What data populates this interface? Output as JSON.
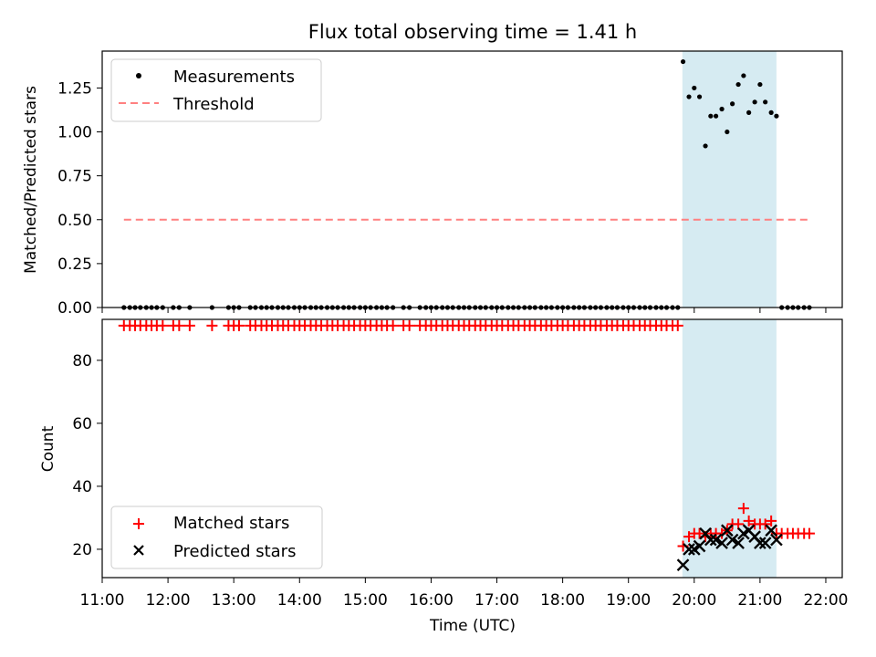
{
  "chart_data": [
    {
      "type": "scatter",
      "title": "Flux total observing time = 1.41 h",
      "xlabel": "",
      "ylabel": "Matched/Predicted stars",
      "xlim": [
        11.0,
        22.25
      ],
      "ylim": [
        0,
        1.46
      ],
      "yticks": [
        0,
        0.25,
        0.5,
        0.75,
        1.0,
        1.25
      ],
      "ytick_labels": [
        "0.00",
        "0.25",
        "0.50",
        "0.75",
        "1.00",
        "1.25"
      ],
      "highlight_span": [
        19.82,
        21.25
      ],
      "legend": [
        "Measurements",
        "Threshold"
      ],
      "threshold": {
        "name": "Threshold",
        "value": 0.5,
        "x_range": [
          11.33,
          21.75
        ],
        "color": "#ff8080"
      },
      "series": [
        {
          "name": "Measurements",
          "color": "#000000",
          "x": [
            11.33,
            11.42,
            11.5,
            11.58,
            11.67,
            11.75,
            11.83,
            11.92,
            12.08,
            12.17,
            12.33,
            12.67,
            12.92,
            13.0,
            13.08,
            13.25,
            13.33,
            13.42,
            13.5,
            13.58,
            13.67,
            13.75,
            13.83,
            13.92,
            14.0,
            14.08,
            14.17,
            14.25,
            14.33,
            14.42,
            14.5,
            14.58,
            14.67,
            14.75,
            14.83,
            14.92,
            15.0,
            15.08,
            15.17,
            15.25,
            15.33,
            15.42,
            15.58,
            15.67,
            15.83,
            15.92,
            16.0,
            16.08,
            16.17,
            16.25,
            16.33,
            16.42,
            16.5,
            16.58,
            16.67,
            16.75,
            16.83,
            16.92,
            17.0,
            17.08,
            17.17,
            17.25,
            17.33,
            17.42,
            17.5,
            17.58,
            17.67,
            17.75,
            17.83,
            17.92,
            18.0,
            18.08,
            18.17,
            18.25,
            18.33,
            18.42,
            18.5,
            18.58,
            18.67,
            18.75,
            18.83,
            18.92,
            19.0,
            19.08,
            19.17,
            19.25,
            19.33,
            19.42,
            19.5,
            19.58,
            19.67,
            19.75,
            19.83,
            19.92,
            20.0,
            20.08,
            20.17,
            20.25,
            20.33,
            20.42,
            20.5,
            20.58,
            20.67,
            20.75,
            20.83,
            20.92,
            21.0,
            21.08,
            21.17,
            21.25,
            21.33,
            21.42,
            21.5,
            21.58,
            21.67,
            21.75
          ],
          "y": [
            0,
            0,
            0,
            0,
            0,
            0,
            0,
            0,
            0,
            0,
            0,
            0,
            0,
            0,
            0,
            0,
            0,
            0,
            0,
            0,
            0,
            0,
            0,
            0,
            0,
            0,
            0,
            0,
            0,
            0,
            0,
            0,
            0,
            0,
            0,
            0,
            0,
            0,
            0,
            0,
            0,
            0,
            0,
            0,
            0,
            0,
            0,
            0,
            0,
            0,
            0,
            0,
            0,
            0,
            0,
            0,
            0,
            0,
            0,
            0,
            0,
            0,
            0,
            0,
            0,
            0,
            0,
            0,
            0,
            0,
            0,
            0,
            0,
            0,
            0,
            0,
            0,
            0,
            0,
            0,
            0,
            0,
            0,
            0,
            0,
            0,
            0,
            0,
            0,
            0,
            0,
            0,
            1.4,
            1.2,
            1.25,
            1.2,
            0.92,
            1.09,
            1.09,
            1.13,
            1.0,
            1.16,
            1.27,
            1.32,
            1.11,
            1.17,
            1.27,
            1.17,
            1.11,
            1.09,
            0,
            0,
            0,
            0,
            0,
            0
          ]
        }
      ]
    },
    {
      "type": "scatter",
      "title": "",
      "xlabel": "Time (UTC)",
      "ylabel": "Count",
      "xlim": [
        11.0,
        22.25
      ],
      "ylim": [
        11,
        93
      ],
      "yticks": [
        20,
        40,
        60,
        80
      ],
      "ytick_labels": [
        "20",
        "40",
        "60",
        "80"
      ],
      "xticks": [
        11,
        12,
        13,
        14,
        15,
        16,
        17,
        18,
        19,
        20,
        21,
        22
      ],
      "xtick_labels": [
        "11:00",
        "12:00",
        "13:00",
        "14:00",
        "15:00",
        "16:00",
        "17:00",
        "18:00",
        "19:00",
        "20:00",
        "21:00",
        "22:00"
      ],
      "highlight_span": [
        19.82,
        21.25
      ],
      "legend": [
        "Matched stars",
        "Predicted stars"
      ],
      "series": [
        {
          "name": "Matched stars",
          "marker": "+",
          "color": "#ff0000",
          "x": [
            11.33,
            11.42,
            11.5,
            11.58,
            11.67,
            11.75,
            11.83,
            11.92,
            12.08,
            12.17,
            12.33,
            12.67,
            12.92,
            13.0,
            13.08,
            13.25,
            13.33,
            13.42,
            13.5,
            13.58,
            13.67,
            13.75,
            13.83,
            13.92,
            14.0,
            14.08,
            14.17,
            14.25,
            14.33,
            14.42,
            14.5,
            14.58,
            14.67,
            14.75,
            14.83,
            14.92,
            15.0,
            15.08,
            15.17,
            15.25,
            15.33,
            15.42,
            15.58,
            15.67,
            15.83,
            15.92,
            16.0,
            16.08,
            16.17,
            16.25,
            16.33,
            16.42,
            16.5,
            16.58,
            16.67,
            16.75,
            16.83,
            16.92,
            17.0,
            17.08,
            17.17,
            17.25,
            17.33,
            17.42,
            17.5,
            17.58,
            17.67,
            17.75,
            17.83,
            17.92,
            18.0,
            18.08,
            18.17,
            18.25,
            18.33,
            18.42,
            18.5,
            18.58,
            18.67,
            18.75,
            18.83,
            18.92,
            19.0,
            19.08,
            19.17,
            19.25,
            19.33,
            19.42,
            19.5,
            19.58,
            19.67,
            19.75,
            19.83,
            19.92,
            20.0,
            20.08,
            20.17,
            20.25,
            20.33,
            20.42,
            20.5,
            20.58,
            20.67,
            20.75,
            20.83,
            20.92,
            21.0,
            21.08,
            21.17,
            21.25,
            21.33,
            21.42,
            21.5,
            21.58,
            21.67,
            21.75
          ],
          "y": [
            91,
            91,
            91,
            91,
            91,
            91,
            91,
            91,
            91,
            91,
            91,
            91,
            91,
            91,
            91,
            91,
            91,
            91,
            91,
            91,
            91,
            91,
            91,
            91,
            91,
            91,
            91,
            91,
            91,
            91,
            91,
            91,
            91,
            91,
            91,
            91,
            91,
            91,
            91,
            91,
            91,
            91,
            91,
            91,
            91,
            91,
            91,
            91,
            91,
            91,
            91,
            91,
            91,
            91,
            91,
            91,
            91,
            91,
            91,
            91,
            91,
            91,
            91,
            91,
            91,
            91,
            91,
            91,
            91,
            91,
            91,
            91,
            91,
            91,
            91,
            91,
            91,
            91,
            91,
            91,
            91,
            91,
            91,
            91,
            91,
            91,
            91,
            91,
            91,
            91,
            91,
            91,
            21,
            24,
            25,
            25,
            24,
            25,
            25,
            25,
            26,
            28,
            28,
            33,
            29,
            28,
            28,
            28,
            29,
            25,
            25,
            25,
            25,
            25,
            25,
            25
          ]
        },
        {
          "name": "Predicted stars",
          "marker": "x",
          "color": "#000000",
          "x": [
            19.83,
            19.92,
            20.0,
            20.08,
            20.17,
            20.25,
            20.33,
            20.42,
            20.5,
            20.58,
            20.67,
            20.75,
            20.83,
            20.92,
            21.0,
            21.08,
            21.17,
            21.25
          ],
          "y": [
            15,
            20,
            20,
            21,
            25,
            23,
            23,
            22,
            26,
            23,
            22,
            25,
            26,
            24,
            22,
            22,
            26,
            23
          ]
        }
      ]
    }
  ]
}
